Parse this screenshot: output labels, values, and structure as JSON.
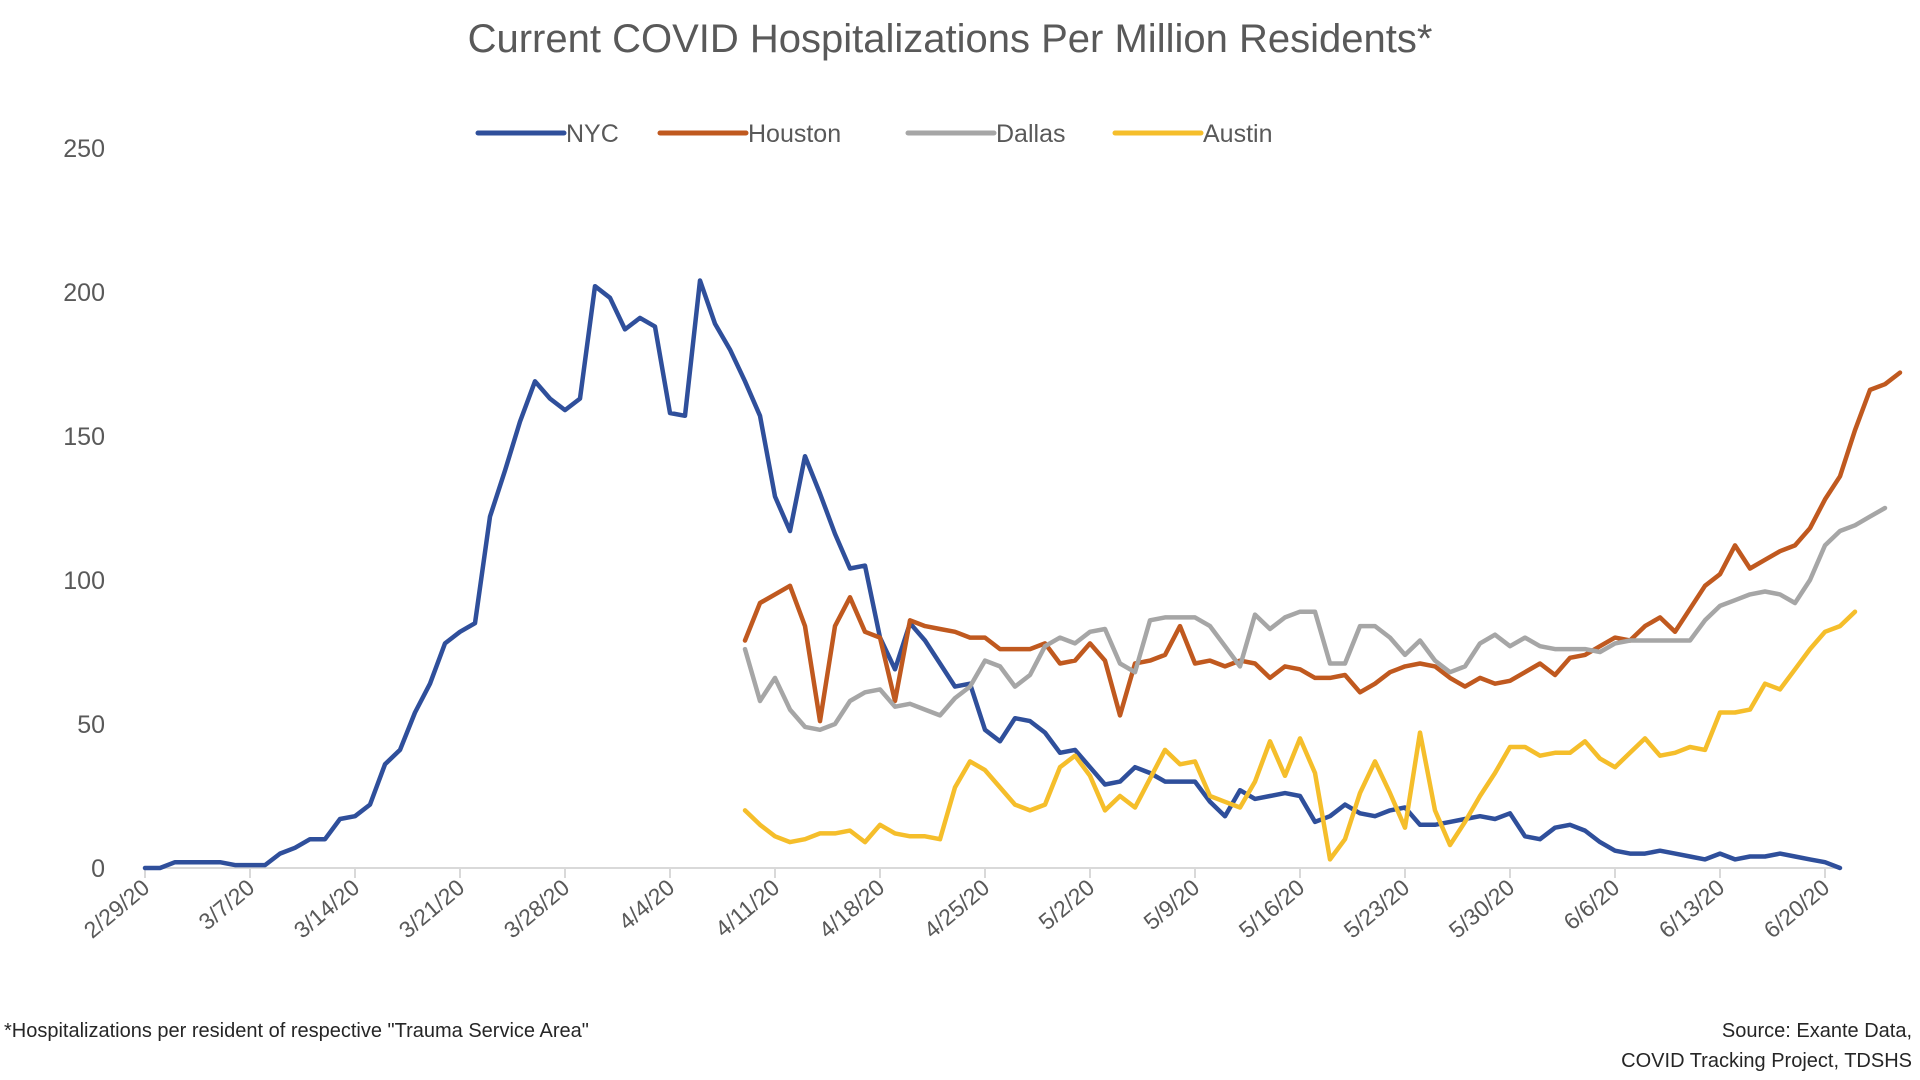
{
  "chart_data": {
    "type": "line",
    "title": "Current COVID Hospitalizations Per Million Residents*",
    "xlabel": "",
    "ylabel": "",
    "ylim": [
      0,
      250
    ],
    "yticks": [
      "0",
      "50",
      "100",
      "150",
      "200",
      "250"
    ],
    "yticks_values": [
      0,
      50,
      100,
      150,
      200,
      250
    ],
    "xlim": [
      0,
      113
    ],
    "xticks": [
      "2/29/20",
      "3/7/20",
      "3/14/20",
      "3/21/20",
      "3/28/20",
      "4/4/20",
      "4/11/20",
      "4/18/20",
      "4/25/20",
      "5/2/20",
      "5/9/20",
      "5/16/20",
      "5/23/20",
      "5/30/20",
      "6/6/20",
      "6/13/20",
      "6/20/20"
    ],
    "xticks_days": [
      0,
      7,
      14,
      21,
      28,
      35,
      42,
      49,
      56,
      63,
      70,
      77,
      84,
      91,
      98,
      105,
      112
    ],
    "legend_position": "top",
    "grid": false,
    "series": [
      {
        "name": "NYC",
        "color": "#2F4F9B",
        "start_day": 0,
        "values": [
          0,
          0,
          2,
          2,
          2,
          2,
          1,
          1,
          1,
          5,
          7,
          10,
          10,
          17,
          18,
          22,
          36,
          41,
          54,
          64,
          78,
          82,
          85,
          122,
          138,
          155,
          169,
          163,
          159,
          163,
          202,
          198,
          187,
          191,
          188,
          158,
          157,
          204,
          189,
          180,
          169,
          157,
          129,
          117,
          143,
          130,
          116,
          104,
          105,
          80,
          69,
          85,
          79,
          71,
          63,
          64,
          48,
          44,
          52,
          51,
          47,
          40,
          41,
          35,
          29,
          30,
          35,
          33,
          30,
          30,
          30,
          23,
          18,
          27,
          24,
          25,
          26,
          25,
          16,
          18,
          22,
          19,
          18,
          20,
          21,
          15,
          15,
          16,
          17,
          18,
          17,
          19,
          11,
          10,
          14,
          15,
          13,
          9,
          6,
          5,
          5,
          6,
          5,
          4,
          3,
          5,
          3,
          4,
          4,
          5,
          4,
          3,
          2,
          0
        ]
      },
      {
        "name": "Houston",
        "color": "#C0591F",
        "start_day": 40,
        "values": [
          79,
          92,
          95,
          98,
          84,
          51,
          84,
          94,
          82,
          80,
          58,
          86,
          84,
          83,
          82,
          80,
          80,
          76,
          76,
          76,
          78,
          71,
          72,
          78,
          72,
          53,
          71,
          72,
          74,
          84,
          71,
          72,
          70,
          72,
          71,
          66,
          70,
          69,
          66,
          66,
          67,
          61,
          64,
          68,
          70,
          71,
          70,
          66,
          63,
          66,
          64,
          65,
          68,
          71,
          67,
          73,
          74,
          77,
          80,
          79,
          84,
          87,
          82,
          90,
          98,
          102,
          112,
          104,
          107,
          110,
          112,
          118,
          128,
          136,
          152,
          166,
          168,
          172
        ]
      },
      {
        "name": "Dallas",
        "color": "#A6A6A6",
        "start_day": 40,
        "values": [
          76,
          58,
          66,
          55,
          49,
          48,
          50,
          58,
          61,
          62,
          56,
          57,
          55,
          53,
          59,
          63,
          72,
          70,
          63,
          67,
          77,
          80,
          78,
          82,
          83,
          71,
          68,
          86,
          87,
          87,
          87,
          84,
          77,
          70,
          88,
          83,
          87,
          89,
          89,
          71,
          71,
          84,
          84,
          80,
          74,
          79,
          72,
          68,
          70,
          78,
          81,
          77,
          80,
          77,
          76,
          76,
          76,
          75,
          78,
          79,
          79,
          79,
          79,
          79,
          86,
          91,
          93,
          95,
          96,
          95,
          92,
          100,
          112,
          117,
          119,
          122,
          125
        ]
      },
      {
        "name": "Austin",
        "color": "#F5BE2B",
        "start_day": 40,
        "values": [
          20,
          15,
          11,
          9,
          10,
          12,
          12,
          13,
          9,
          15,
          12,
          11,
          11,
          10,
          28,
          37,
          34,
          28,
          22,
          20,
          22,
          35,
          39,
          32,
          20,
          25,
          21,
          31,
          41,
          36,
          37,
          25,
          23,
          21,
          30,
          44,
          32,
          45,
          33,
          3,
          10,
          26,
          37,
          26,
          14,
          47,
          20,
          8,
          16,
          25,
          33,
          42,
          42,
          39,
          40,
          40,
          44,
          38,
          35,
          40,
          45,
          39,
          40,
          42,
          41,
          54,
          54,
          55,
          64,
          62,
          69,
          76,
          82,
          84,
          89
        ]
      }
    ],
    "annotations": {
      "footnote": "*Hospitalizations per resident of respective \"Trauma Service Area\"",
      "source_line1": "Source: Exante Data,",
      "source_line2": "COVID Tracking Project, TDSHS"
    }
  }
}
